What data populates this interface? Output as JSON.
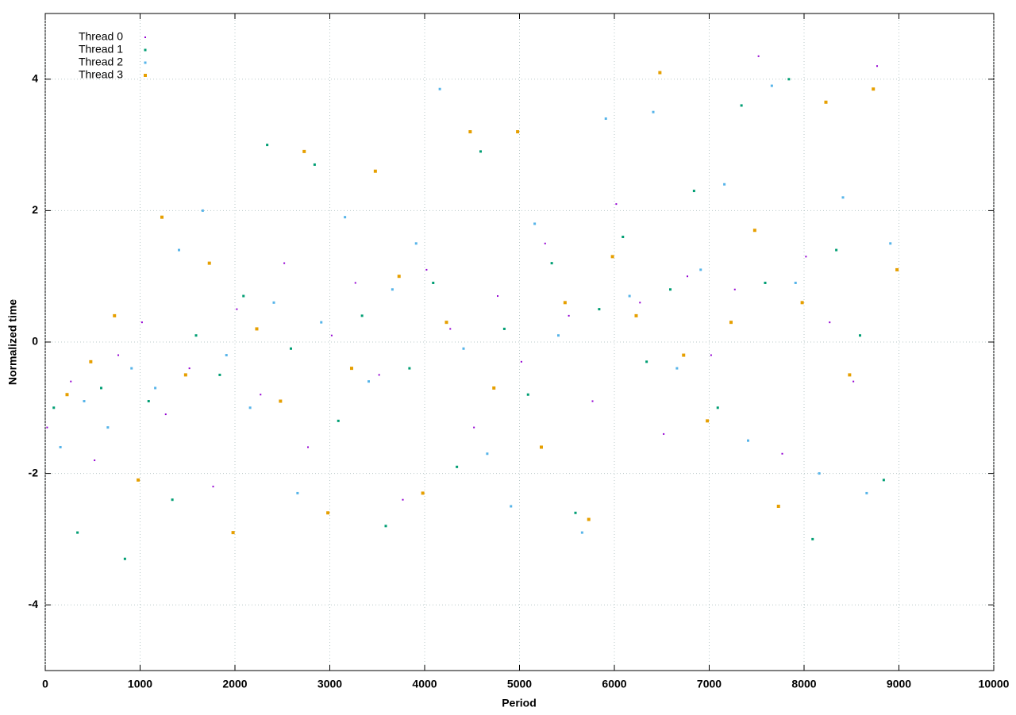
{
  "chart_data": {
    "type": "scatter",
    "x_label": "Period",
    "y_label": "Normalized time",
    "xlim": [
      0,
      10000
    ],
    "ylim": [
      -5,
      5
    ],
    "xticks": [
      0,
      1000,
      2000,
      3000,
      4000,
      5000,
      6000,
      7000,
      8000,
      9000,
      10000
    ],
    "yticks": [
      -4,
      -2,
      0,
      2,
      4
    ],
    "grid": true,
    "legend": "upper left",
    "series": [
      {
        "name": "Thread 0",
        "color": "#9400d3",
        "x": [
          20,
          270,
          520,
          770,
          1020,
          1270,
          1520,
          1770,
          2020,
          2270,
          2520,
          2770,
          3020,
          3270,
          3520,
          3770,
          4020,
          4270,
          4520,
          4770,
          5020,
          5270,
          5520,
          5770,
          6020,
          6270,
          6520,
          6770,
          7020,
          7270,
          7520,
          7770,
          8020,
          8270,
          8520,
          8770
        ],
        "values": [
          -1.3,
          -0.6,
          -1.8,
          -0.2,
          0.3,
          -1.1,
          -0.4,
          -2.2,
          0.5,
          -0.8,
          1.2,
          -1.6,
          0.1,
          0.9,
          -0.5,
          -2.4,
          1.1,
          0.2,
          -1.3,
          0.7,
          -0.3,
          1.5,
          0.4,
          -0.9,
          2.1,
          0.6,
          -1.4,
          1.0,
          -0.2,
          0.8,
          4.35,
          -1.7,
          1.3,
          0.3,
          -0.6,
          4.2
        ]
      },
      {
        "name": "Thread 1",
        "color": "#009e73",
        "x": [
          90,
          340,
          590,
          840,
          1090,
          1340,
          1590,
          1840,
          2090,
          2340,
          2590,
          2840,
          3090,
          3340,
          3590,
          3840,
          4090,
          4340,
          4590,
          4840,
          5090,
          5340,
          5590,
          5840,
          6090,
          6340,
          6590,
          6840,
          7090,
          7340,
          7590,
          7840,
          8090,
          8340,
          8590,
          8840
        ],
        "values": [
          -1.0,
          -2.9,
          -0.7,
          -3.3,
          -0.9,
          -2.4,
          0.1,
          -0.5,
          0.7,
          3.0,
          -0.1,
          2.7,
          -1.2,
          0.4,
          -2.8,
          -0.4,
          0.9,
          -1.9,
          2.9,
          0.2,
          -0.8,
          1.2,
          -2.6,
          0.5,
          1.6,
          -0.3,
          0.8,
          2.3,
          -1.0,
          3.6,
          0.9,
          4.0,
          -3.0,
          1.4,
          0.1,
          -2.1
        ]
      },
      {
        "name": "Thread 2",
        "color": "#56b4e9",
        "x": [
          160,
          410,
          660,
          910,
          1160,
          1410,
          1660,
          1910,
          2160,
          2410,
          2660,
          2910,
          3160,
          3410,
          3660,
          3910,
          4160,
          4410,
          4660,
          4910,
          5160,
          5410,
          5660,
          5910,
          6160,
          6410,
          6660,
          6910,
          7160,
          7410,
          7660,
          7910,
          8160,
          8410,
          8660,
          8910
        ],
        "values": [
          -1.6,
          -0.9,
          -1.3,
          -0.4,
          -0.7,
          1.4,
          2.0,
          -0.2,
          -1.0,
          0.6,
          -2.3,
          0.3,
          1.9,
          -0.6,
          0.8,
          1.5,
          3.85,
          -0.1,
          -1.7,
          -2.5,
          1.8,
          0.1,
          -2.9,
          3.4,
          0.7,
          3.5,
          -0.4,
          1.1,
          2.4,
          -1.5,
          3.9,
          0.9,
          -2.0,
          2.2,
          -2.3,
          1.5
        ]
      },
      {
        "name": "Thread 3",
        "color": "#e69f00",
        "x": [
          230,
          480,
          730,
          980,
          1230,
          1480,
          1730,
          1980,
          2230,
          2480,
          2730,
          2980,
          3230,
          3480,
          3730,
          3980,
          4230,
          4480,
          4730,
          4980,
          5230,
          5480,
          5730,
          5980,
          6230,
          6480,
          6730,
          6980,
          7230,
          7480,
          7730,
          7980,
          8230,
          8480,
          8730,
          8980
        ],
        "values": [
          -0.8,
          -0.3,
          0.4,
          -2.1,
          1.9,
          -0.5,
          1.2,
          -2.9,
          0.2,
          -0.9,
          2.9,
          -2.6,
          -0.4,
          2.6,
          1.0,
          -2.3,
          0.3,
          3.2,
          -0.7,
          3.2,
          -1.6,
          0.6,
          -2.7,
          1.3,
          0.4,
          4.1,
          -0.2,
          -1.2,
          0.3,
          1.7,
          -2.5,
          0.6,
          3.65,
          -0.5,
          3.85,
          1.1
        ]
      }
    ]
  }
}
